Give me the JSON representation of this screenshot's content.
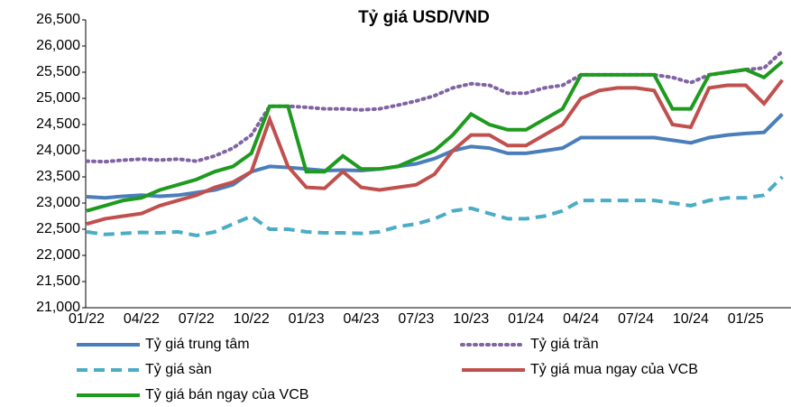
{
  "chart_data": {
    "type": "line",
    "title": "Tỷ giá USD/VND",
    "categories": [
      "01/22",
      null,
      null,
      "04/22",
      null,
      null,
      "07/22",
      null,
      null,
      "10/22",
      null,
      null,
      "01/23",
      null,
      null,
      "04/23",
      null,
      null,
      "07/23",
      null,
      null,
      "10/23",
      null,
      null,
      "01/24",
      null,
      null,
      "04/24",
      null,
      null,
      "07/24",
      null,
      null,
      "10/24",
      null,
      null,
      "01/25",
      null,
      null
    ],
    "ylim": [
      21000,
      26500
    ],
    "yticks": [
      {
        "value": 21000,
        "label": "21,000"
      },
      {
        "value": 21500,
        "label": "21,500"
      },
      {
        "value": 22000,
        "label": "22,000"
      },
      {
        "value": 22500,
        "label": "22,500"
      },
      {
        "value": 23000,
        "label": "23,000"
      },
      {
        "value": 23500,
        "label": "23,500"
      },
      {
        "value": 24000,
        "label": "24,000"
      },
      {
        "value": 24500,
        "label": "24,500"
      },
      {
        "value": 25000,
        "label": "25,000"
      },
      {
        "value": 25500,
        "label": "25,500"
      },
      {
        "value": 26000,
        "label": "26,000"
      },
      {
        "value": 26500,
        "label": "26,500"
      }
    ],
    "series": [
      {
        "name": "Tỷ giá trung tâm",
        "color": "#4a7ebb",
        "style": "solid",
        "values": [
          23120,
          23100,
          23130,
          23150,
          23130,
          23150,
          23200,
          23250,
          23350,
          23600,
          23700,
          23680,
          23650,
          23620,
          23630,
          23620,
          23650,
          23700,
          23750,
          23850,
          24000,
          24080,
          24050,
          23950,
          23950,
          24000,
          24050,
          24250,
          24250,
          24250,
          24250,
          24250,
          24200,
          24150,
          24250,
          24300,
          24330,
          24350,
          24700
        ]
      },
      {
        "name": "Tỷ giá trần",
        "color": "#8064a2",
        "style": "dotted",
        "values": [
          23800,
          23790,
          23820,
          23840,
          23820,
          23840,
          23800,
          23900,
          24050,
          24300,
          24850,
          24850,
          24830,
          24800,
          24800,
          24780,
          24800,
          24870,
          24950,
          25050,
          25200,
          25280,
          25250,
          25100,
          25100,
          25200,
          25250,
          25450,
          25450,
          25450,
          25450,
          25450,
          25400,
          25300,
          25450,
          25500,
          25550,
          25580,
          25900
        ]
      },
      {
        "name": "Tỷ giá sàn",
        "color": "#4bacc6",
        "style": "dashed",
        "values": [
          22450,
          22400,
          22420,
          22440,
          22430,
          22450,
          22380,
          22450,
          22600,
          22750,
          22500,
          22500,
          22450,
          22430,
          22430,
          22420,
          22450,
          22550,
          22600,
          22700,
          22850,
          22900,
          22800,
          22700,
          22700,
          22750,
          22850,
          23050,
          23050,
          23050,
          23050,
          23050,
          23000,
          22950,
          23050,
          23100,
          23100,
          23150,
          23500
        ]
      },
      {
        "name": "Tỷ giá mua ngay của VCB",
        "color": "#c0504d",
        "style": "solid",
        "values": [
          22600,
          22700,
          22750,
          22800,
          22950,
          23050,
          23150,
          23300,
          23400,
          23600,
          24600,
          23700,
          23300,
          23280,
          23600,
          23300,
          23250,
          23300,
          23350,
          23550,
          24000,
          24300,
          24300,
          24100,
          24100,
          24300,
          24500,
          25000,
          25150,
          25200,
          25200,
          25150,
          24500,
          24450,
          25200,
          25250,
          25250,
          24900,
          25350
        ]
      },
      {
        "name": "Tỷ giá bán ngay của VCB",
        "color": "#1e9a1e",
        "style": "solid",
        "values": [
          22850,
          22950,
          23050,
          23100,
          23250,
          23350,
          23450,
          23600,
          23700,
          23950,
          24850,
          24850,
          23600,
          23600,
          23900,
          23650,
          23650,
          23700,
          23850,
          24000,
          24300,
          24700,
          24500,
          24400,
          24400,
          24600,
          24800,
          25450,
          25450,
          25450,
          25450,
          25450,
          24800,
          24800,
          25450,
          25500,
          25550,
          25400,
          25700
        ]
      }
    ]
  }
}
